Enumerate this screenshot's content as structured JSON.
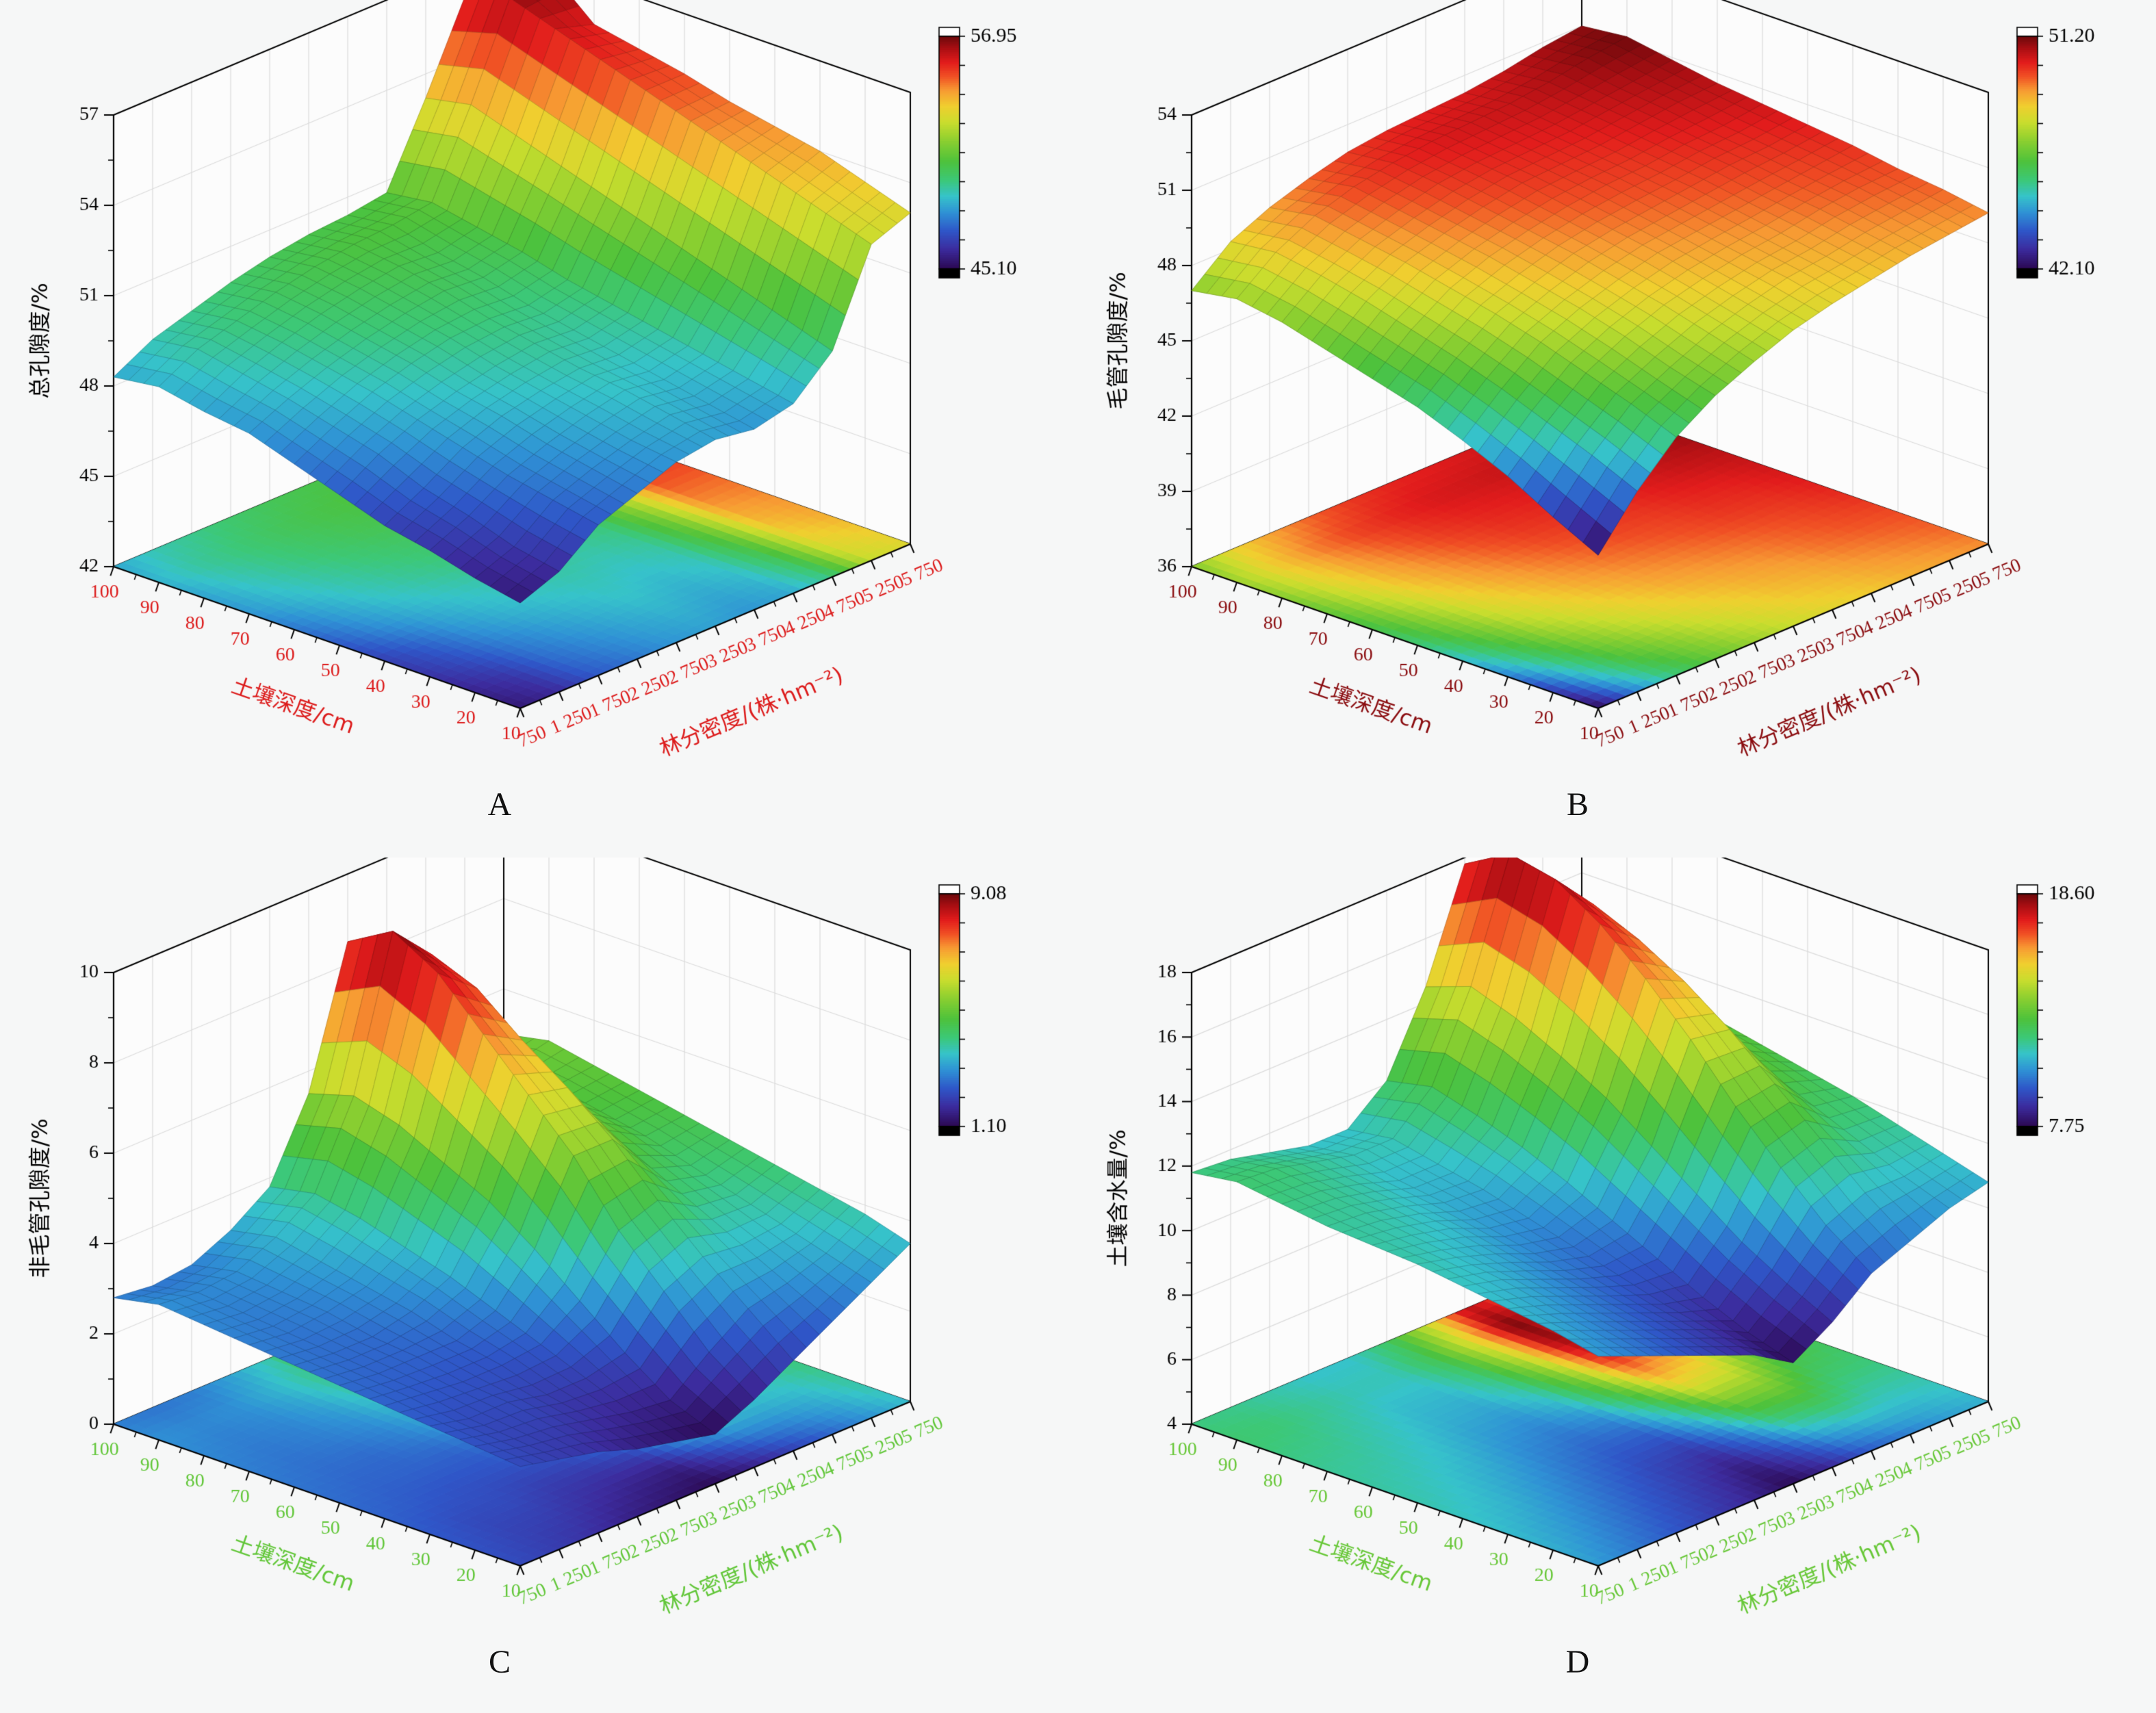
{
  "figure": {
    "background": "#f6f7f7",
    "wall_color": "#fcfcfc",
    "wall_grid_color": "#dcdcdc",
    "axis_color": "#000000"
  },
  "colormap_stops": [
    [
      0.0,
      "#2c0a55"
    ],
    [
      0.08,
      "#3c2b9d"
    ],
    [
      0.16,
      "#2f56c8"
    ],
    [
      0.24,
      "#2f92d5"
    ],
    [
      0.31,
      "#36c3ca"
    ],
    [
      0.38,
      "#3cc878"
    ],
    [
      0.46,
      "#4dc23c"
    ],
    [
      0.55,
      "#8bcf30"
    ],
    [
      0.63,
      "#c9dd2e"
    ],
    [
      0.7,
      "#f0cf2f"
    ],
    [
      0.77,
      "#f79a33"
    ],
    [
      0.83,
      "#f05024"
    ],
    [
      0.89,
      "#e21c1c"
    ],
    [
      0.95,
      "#ab0f13"
    ],
    [
      1.0,
      "#70090c"
    ]
  ],
  "chart_data": [
    {
      "type": "surface3d",
      "letter": "A",
      "z_title": "总孔隙度/%",
      "x_title": "土壤深度/cm",
      "y_title": "林分密度/(株·hm⁻²)",
      "depths": [
        10,
        20,
        30,
        40,
        50,
        60,
        70,
        80,
        90,
        100
      ],
      "densities": [
        750,
        1250,
        1750,
        2250,
        2750,
        3250,
        3750,
        4250,
        4750,
        5250,
        5750
      ],
      "density_labels": [
        "750",
        "1 250",
        "1 750",
        "2 250",
        "2 750",
        "3 250",
        "3 750",
        "4 250",
        "4 750",
        "5 250",
        "5 750"
      ],
      "z_axis": {
        "min": 42,
        "max": 57,
        "ticks": [
          42,
          45,
          48,
          51,
          54,
          57
        ]
      },
      "colorbar": {
        "min": 45.1,
        "max": 56.95,
        "min_label": "45.10",
        "max_label": "56.95"
      },
      "values": [
        [
          45.5,
          46.0,
          47.0,
          47.5,
          48.0,
          48.2,
          48.0,
          48.3,
          49.5,
          52.5,
          53.0
        ],
        [
          45.8,
          46.3,
          47.3,
          47.8,
          48.2,
          48.5,
          48.3,
          48.6,
          50.0,
          53.0,
          53.5
        ],
        [
          46.2,
          46.8,
          47.6,
          48.1,
          48.5,
          48.8,
          48.6,
          48.9,
          50.5,
          53.5,
          54.0
        ],
        [
          46.5,
          47.2,
          48.0,
          48.5,
          48.8,
          49.0,
          48.9,
          49.2,
          51.0,
          54.0,
          54.3
        ],
        [
          47.0,
          47.8,
          48.4,
          48.8,
          49.1,
          49.3,
          49.2,
          49.5,
          51.5,
          54.5,
          54.6
        ],
        [
          47.5,
          48.2,
          48.8,
          49.2,
          49.5,
          49.6,
          49.5,
          49.8,
          52.0,
          55.0,
          55.0
        ],
        [
          48.0,
          48.6,
          49.1,
          49.5,
          49.8,
          50.0,
          49.9,
          50.2,
          52.5,
          55.5,
          55.3
        ],
        [
          48.2,
          48.9,
          49.4,
          49.8,
          50.1,
          50.3,
          50.2,
          50.5,
          53.0,
          56.0,
          55.6
        ],
        [
          48.5,
          49.2,
          49.6,
          50.0,
          50.3,
          50.5,
          50.6,
          50.8,
          53.5,
          56.5,
          56.9
        ],
        [
          48.3,
          49.0,
          49.4,
          49.8,
          50.1,
          50.3,
          50.4,
          50.6,
          53.2,
          56.0,
          55.5
        ]
      ]
    },
    {
      "type": "surface3d",
      "letter": "B",
      "z_title": "毛管孔隙度/%",
      "x_title": "土壤深度/cm",
      "y_title": "林分密度/(株·hm⁻²)",
      "depths": [
        10,
        20,
        30,
        40,
        50,
        60,
        70,
        80,
        90,
        100
      ],
      "densities": [
        750,
        1250,
        1750,
        2250,
        2750,
        3250,
        3750,
        4250,
        4750,
        5250,
        5750
      ],
      "density_labels": [
        "750",
        "1 250",
        "1 750",
        "2 250",
        "2 750",
        "3 250",
        "3 750",
        "4 250",
        "4 750",
        "5 250",
        "5 750"
      ],
      "z_axis": {
        "min": 36,
        "max": 54,
        "ticks": [
          36,
          39,
          42,
          45,
          48,
          51,
          54
        ]
      },
      "colorbar": {
        "min": 42.1,
        "max": 51.2,
        "min_label": "42.10",
        "max_label": "51.20"
      },
      "values": [
        [
          42.1,
          44.0,
          45.5,
          46.5,
          47.2,
          47.8,
          48.2,
          48.5,
          48.8,
          49.0,
          49.2
        ],
        [
          43.0,
          44.8,
          46.2,
          47.0,
          47.7,
          48.2,
          48.6,
          48.8,
          49.1,
          49.3,
          49.5
        ],
        [
          44.0,
          45.5,
          46.8,
          47.6,
          48.2,
          48.6,
          48.9,
          49.1,
          49.4,
          49.6,
          49.7
        ],
        [
          44.8,
          46.2,
          47.4,
          48.1,
          48.6,
          49.0,
          49.2,
          49.4,
          49.6,
          49.8,
          50.0
        ],
        [
          45.5,
          46.8,
          47.9,
          48.5,
          49.0,
          49.3,
          49.5,
          49.7,
          49.9,
          50.0,
          50.2
        ],
        [
          46.0,
          47.3,
          48.3,
          48.9,
          49.3,
          49.6,
          49.8,
          49.9,
          50.1,
          50.2,
          50.4
        ],
        [
          46.5,
          47.8,
          48.7,
          49.2,
          49.6,
          49.9,
          50.0,
          50.1,
          50.3,
          50.5,
          50.6
        ],
        [
          47.0,
          48.2,
          49.0,
          49.5,
          49.9,
          50.1,
          50.2,
          50.3,
          50.5,
          50.7,
          50.9
        ],
        [
          47.3,
          48.5,
          49.3,
          49.8,
          50.1,
          50.3,
          50.4,
          50.5,
          50.7,
          51.0,
          51.2
        ],
        [
          47.0,
          48.3,
          49.0,
          49.5,
          49.9,
          50.1,
          50.2,
          50.3,
          50.5,
          50.8,
          51.0
        ]
      ]
    },
    {
      "type": "surface3d",
      "letter": "C",
      "z_title": "非毛管孔隙度/%",
      "x_title": "土壤深度/cm",
      "y_title": "林分密度/(株·hm⁻²)",
      "depths": [
        10,
        20,
        30,
        40,
        50,
        60,
        70,
        80,
        90,
        100
      ],
      "densities": [
        750,
        1250,
        1750,
        2250,
        2750,
        3250,
        3750,
        4250,
        4750,
        5250,
        5750
      ],
      "density_labels": [
        "750",
        "1 250",
        "1 750",
        "2 250",
        "2 750",
        "3 250",
        "3 750",
        "4 250",
        "4 750",
        "5 250",
        "5 750"
      ],
      "z_axis": {
        "min": 0,
        "max": 10,
        "ticks": [
          0,
          2,
          4,
          6,
          8,
          10
        ]
      },
      "colorbar": {
        "min": 1.1,
        "max": 9.08,
        "min_label": "1.10",
        "max_label": "9.08"
      },
      "values": [
        [
          2.2,
          2.0,
          1.8,
          1.5,
          1.3,
          1.1,
          1.5,
          2.0,
          2.5,
          3.0,
          3.5
        ],
        [
          2.3,
          2.1,
          2.0,
          1.8,
          1.6,
          1.5,
          2.2,
          2.8,
          3.0,
          3.3,
          3.8
        ],
        [
          2.4,
          2.2,
          2.2,
          2.0,
          2.0,
          2.2,
          3.2,
          3.6,
          3.5,
          3.6,
          4.0
        ],
        [
          2.5,
          2.4,
          2.3,
          2.3,
          2.4,
          3.0,
          4.2,
          4.5,
          4.0,
          3.9,
          4.2
        ],
        [
          2.6,
          2.5,
          2.5,
          2.5,
          2.8,
          3.8,
          5.5,
          5.5,
          4.5,
          4.2,
          4.4
        ],
        [
          2.7,
          2.6,
          2.6,
          2.8,
          3.2,
          4.5,
          6.5,
          6.3,
          5.0,
          4.5,
          4.6
        ],
        [
          2.8,
          2.7,
          2.8,
          3.0,
          3.5,
          5.0,
          7.5,
          7.0,
          5.3,
          4.7,
          4.8
        ],
        [
          2.9,
          2.8,
          2.9,
          3.2,
          3.8,
          5.5,
          8.5,
          7.8,
          5.6,
          4.9,
          5.0
        ],
        [
          3.0,
          2.9,
          3.0,
          3.4,
          4.0,
          5.8,
          9.08,
          8.2,
          5.8,
          5.0,
          5.2
        ],
        [
          2.8,
          2.7,
          2.8,
          3.2,
          3.8,
          5.5,
          8.5,
          7.8,
          5.5,
          4.8,
          5.0
        ]
      ]
    },
    {
      "type": "surface3d",
      "letter": "D",
      "z_title": "土壤含水量/%",
      "x_title": "土壤深度/cm",
      "y_title": "林分密度/(株·hm⁻²)",
      "depths": [
        10,
        20,
        30,
        40,
        50,
        60,
        70,
        80,
        90,
        100
      ],
      "densities": [
        750,
        1250,
        1750,
        2250,
        2750,
        3250,
        3750,
        4250,
        4750,
        5250,
        5750
      ],
      "density_labels": [
        "750",
        "1 250",
        "1 750",
        "2 250",
        "2 750",
        "3 250",
        "3 750",
        "4 250",
        "4 750",
        "5 250",
        "5 750"
      ],
      "z_axis": {
        "min": 4,
        "max": 18,
        "ticks": [
          4,
          6,
          8,
          10,
          12,
          14,
          16,
          18
        ]
      },
      "colorbar": {
        "min": 7.75,
        "max": 18.6,
        "min_label": "7.75",
        "max_label": "18.60"
      },
      "values": [
        [
          10.5,
          10.0,
          9.5,
          9.0,
          8.5,
          7.75,
          8.5,
          9.5,
          10.0,
          10.5,
          10.8
        ],
        [
          10.8,
          10.3,
          9.8,
          9.3,
          8.8,
          8.2,
          9.2,
          10.5,
          11.0,
          11.0,
          11.2
        ],
        [
          11.0,
          10.6,
          10.1,
          9.6,
          9.1,
          8.8,
          10.0,
          11.8,
          12.2,
          11.6,
          11.6
        ],
        [
          11.2,
          10.9,
          10.4,
          9.9,
          9.5,
          9.5,
          11.0,
          13.2,
          13.4,
          12.2,
          12.0
        ],
        [
          11.4,
          11.1,
          10.7,
          10.2,
          9.9,
          10.2,
          12.0,
          14.8,
          14.6,
          12.8,
          12.3
        ],
        [
          11.5,
          11.3,
          11.0,
          10.5,
          10.3,
          10.9,
          13.0,
          16.2,
          15.6,
          13.3,
          12.6
        ],
        [
          11.6,
          11.5,
          11.2,
          10.8,
          10.7,
          11.5,
          13.8,
          17.4,
          16.4,
          13.7,
          12.9
        ],
        [
          11.8,
          11.7,
          11.4,
          11.0,
          11.0,
          12.0,
          14.5,
          18.3,
          17.0,
          14.0,
          13.1
        ],
        [
          12.0,
          11.9,
          11.6,
          11.3,
          11.3,
          12.4,
          15.0,
          18.6,
          17.3,
          14.2,
          13.3
        ],
        [
          11.8,
          11.7,
          11.4,
          11.1,
          11.1,
          12.1,
          14.5,
          17.8,
          16.8,
          13.9,
          13.0
        ]
      ]
    }
  ]
}
